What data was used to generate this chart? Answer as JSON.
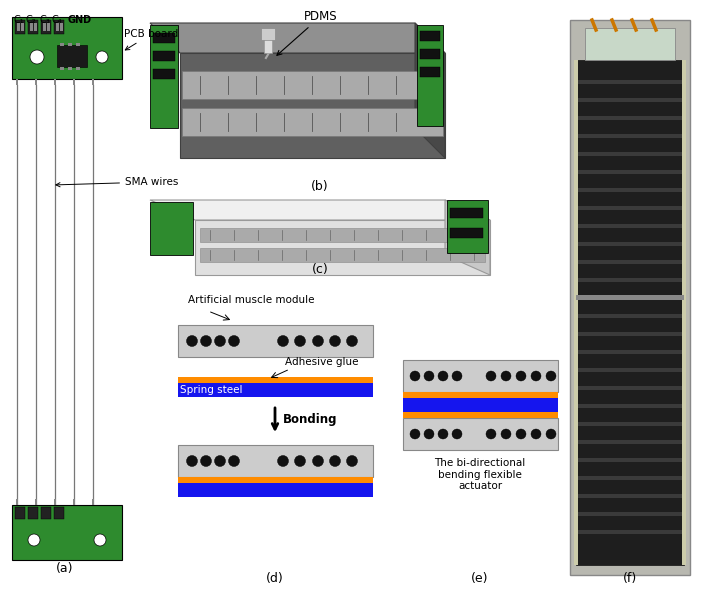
{
  "bg_color": "#ffffff",
  "pcb_green": "#2e8b2e",
  "sma_wire_color": "#777777",
  "spring_steel_color": "#1515ee",
  "adhesive_color": "#ff8c00",
  "muscle_bg": "#cccccc",
  "dot_color": "#111111",
  "text_color": "#000000",
  "annotation_fontsize": 7.5,
  "label_fontsize": 9,
  "c1_label": "C₁",
  "c2_label": "C₂",
  "c3_label": "C₃",
  "c4_label": "C₄",
  "gnd_label": "GND",
  "pcb_board_label": "PCB board",
  "sma_wires_label": "SMA wires",
  "pdms_label": "PDMS",
  "art_muscle_label": "Artificial muscle module",
  "adhesive_label": "Adhesive glue",
  "spring_label": "Spring steel",
  "bonding_label": "↓Bonding",
  "bidirectional_label": "The bi-directional\nbending flexible\nactuator",
  "label_a": "(a)",
  "label_b": "(b)",
  "label_c": "(c)",
  "label_d": "(d)",
  "label_e": "(e)",
  "label_f": "(f)"
}
